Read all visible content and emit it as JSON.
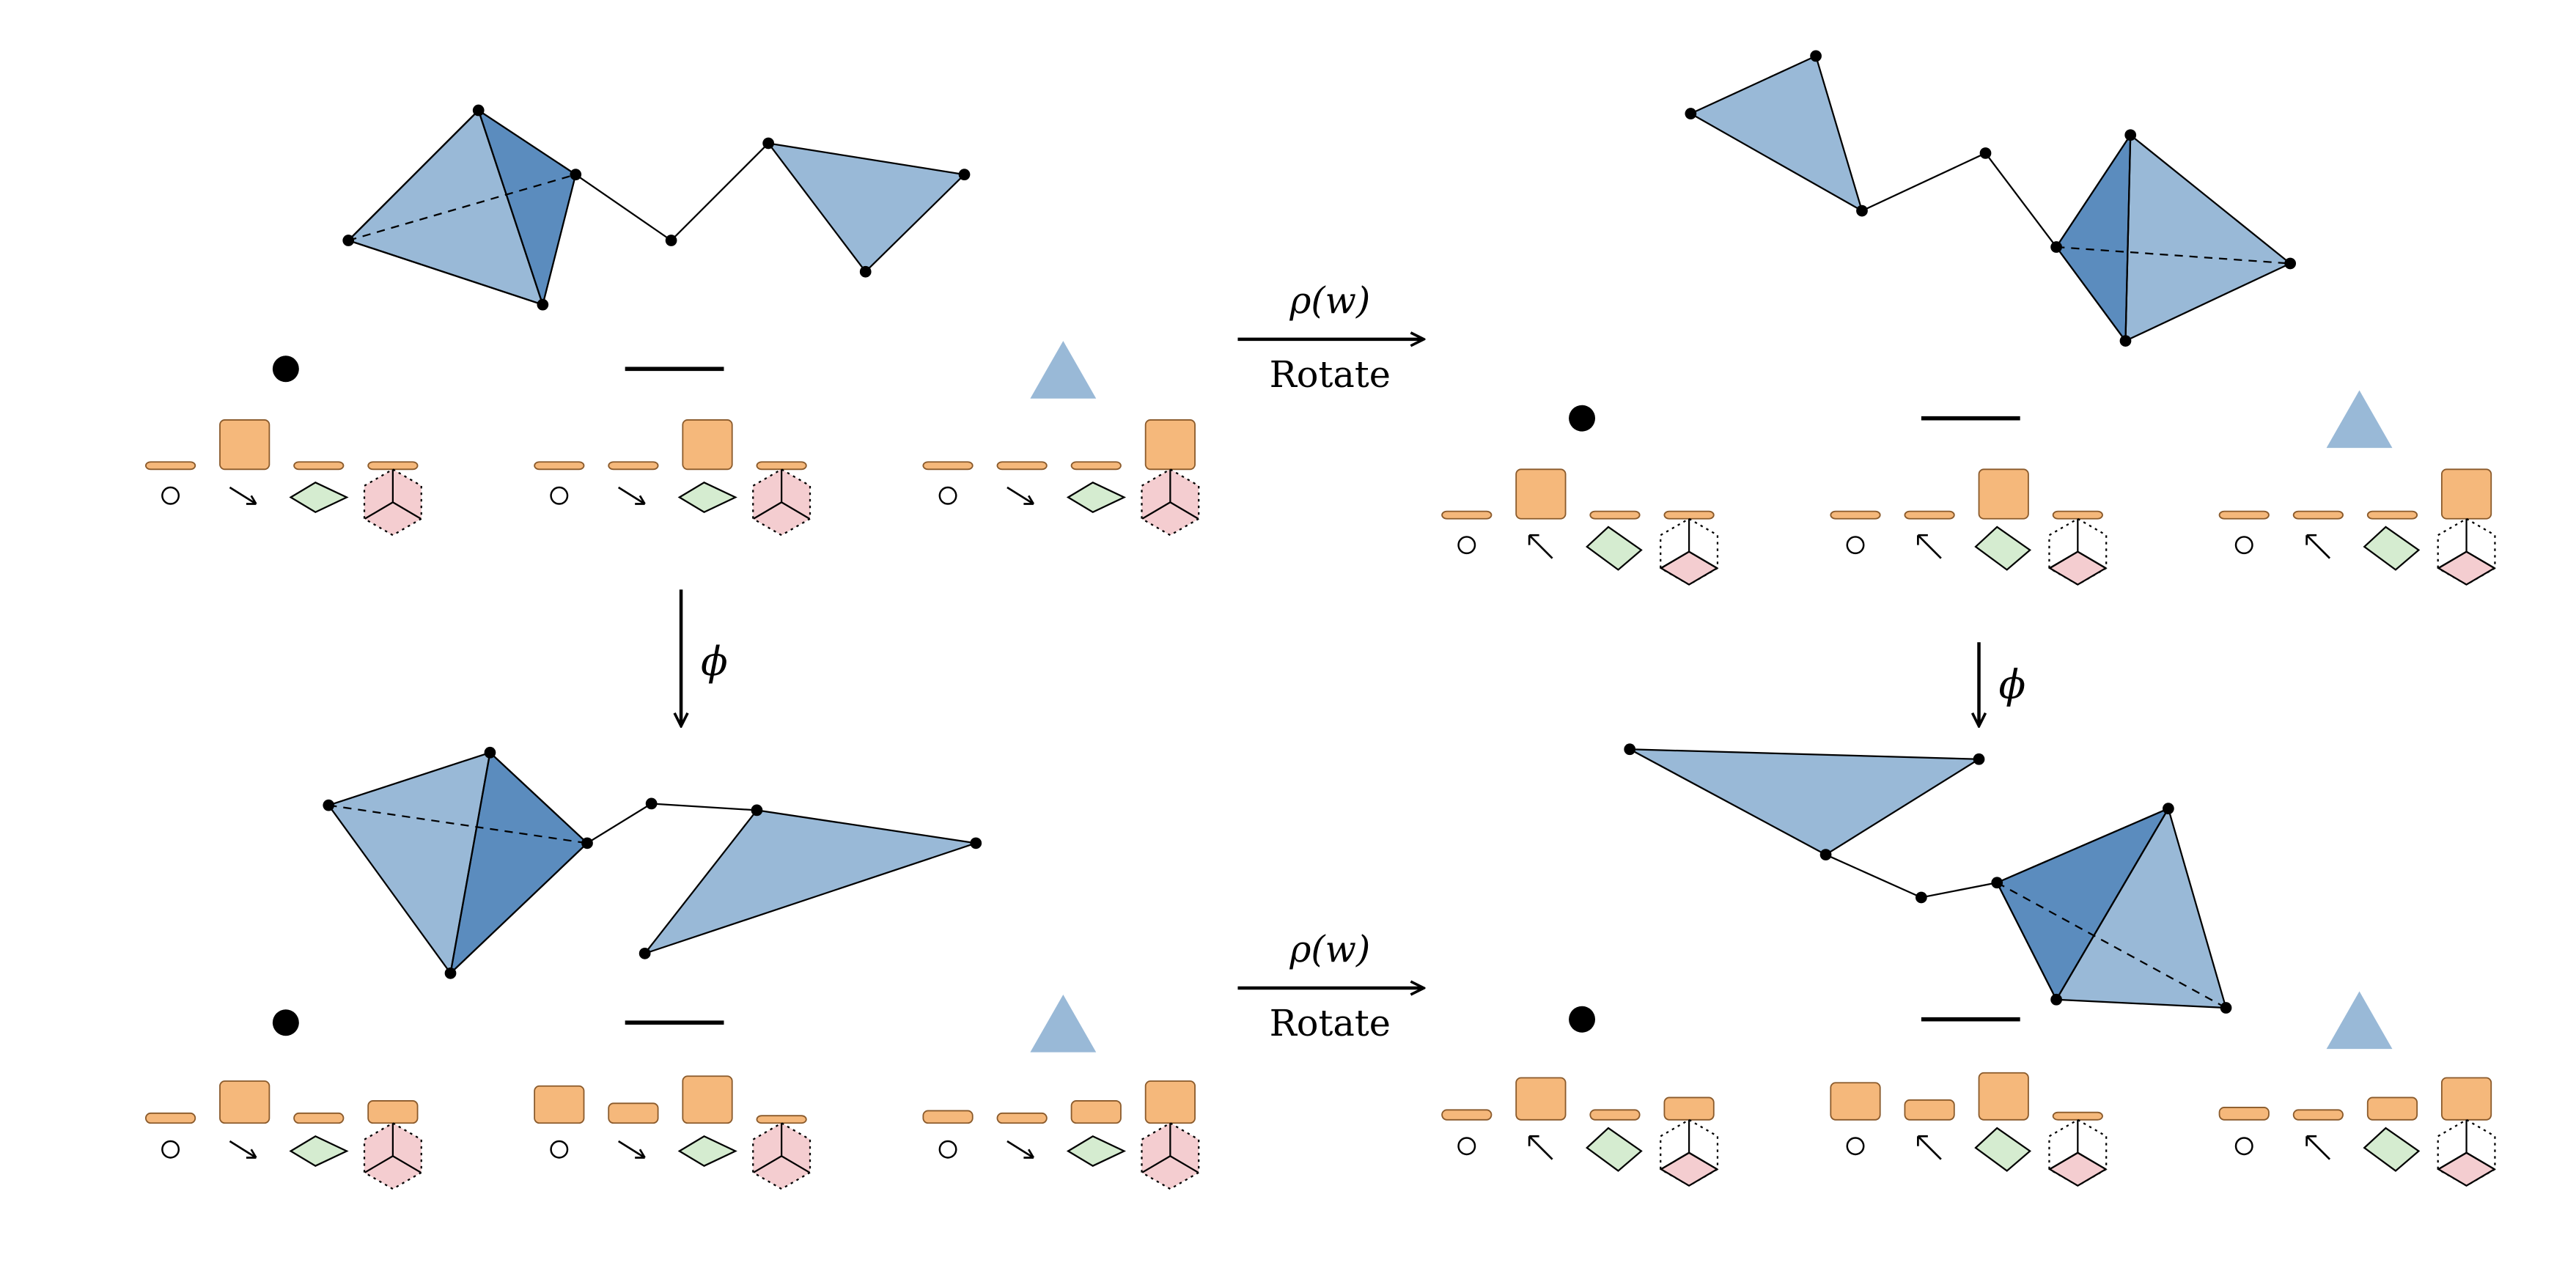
{
  "labels": {
    "map_top": "ρ(w)",
    "action_top": "Rotate",
    "map_bottom": "ρ(w)",
    "action_bottom": "Rotate",
    "phi_left": "ϕ",
    "phi_right": "ϕ"
  },
  "colors": {
    "simplex_light": "#99b9d7",
    "simplex_dark": "#5b8cbe",
    "feature_bar": "#f5b87b",
    "feature_bar_stroke": "#8a5a2b",
    "green_fill": "#d5ecd0",
    "red_fill": "#f4cdd0",
    "stroke": "#000000"
  },
  "panels": [
    {
      "id": "input-complex",
      "bars": [
        [
          0.15,
          1.0,
          0.15,
          0.15
        ],
        [
          0.15,
          0.15,
          1.0,
          0.15
        ],
        [
          0.15,
          0.15,
          0.15,
          1.0
        ]
      ]
    },
    {
      "id": "rotated-complex",
      "bars": [
        [
          0.15,
          1.0,
          0.15,
          0.15
        ],
        [
          0.15,
          0.15,
          1.0,
          0.15
        ],
        [
          0.15,
          0.15,
          0.15,
          1.0
        ]
      ]
    },
    {
      "id": "phi-complex",
      "bars": [
        [
          0.2,
          0.85,
          0.2,
          0.45
        ],
        [
          0.75,
          0.4,
          0.95,
          0.15
        ],
        [
          0.25,
          0.2,
          0.45,
          0.85
        ]
      ]
    },
    {
      "id": "phi-rotated-complex",
      "bars": [
        [
          0.2,
          0.85,
          0.2,
          0.45
        ],
        [
          0.75,
          0.4,
          0.95,
          0.15
        ],
        [
          0.25,
          0.2,
          0.45,
          0.85
        ]
      ]
    }
  ]
}
